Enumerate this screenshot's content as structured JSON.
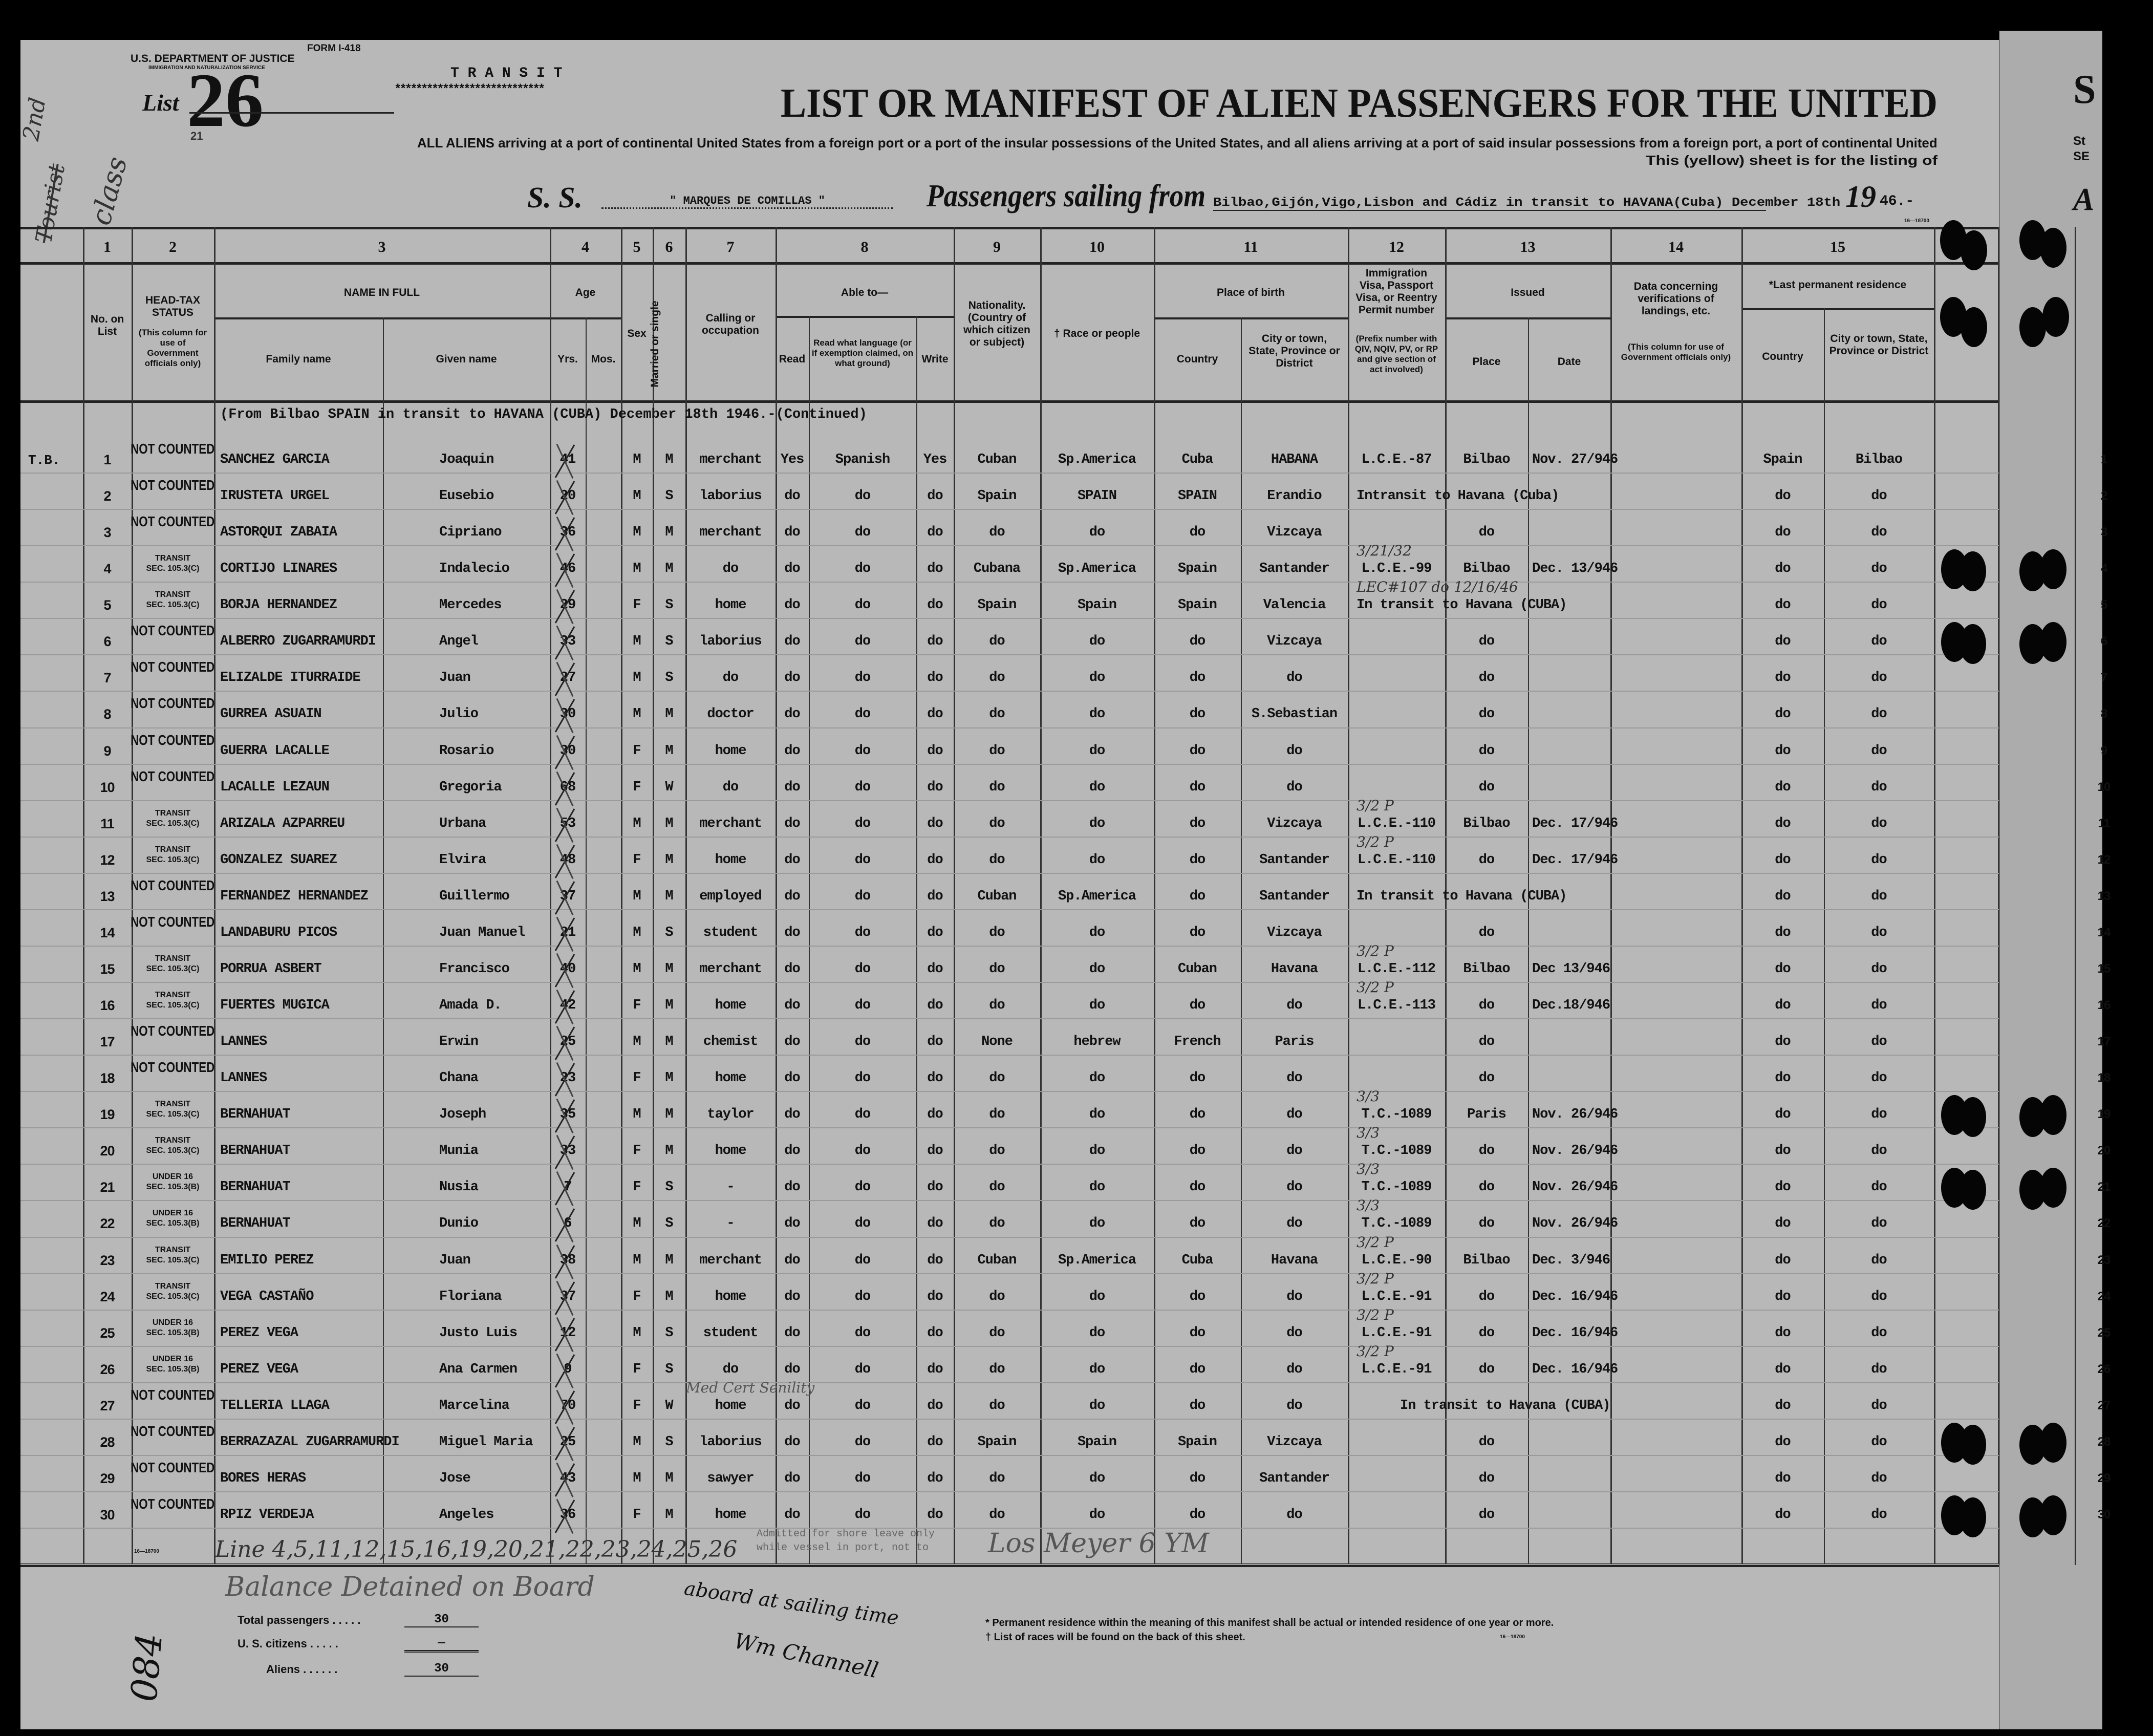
{
  "form": {
    "form_number": "FORM I-418",
    "department": "U.S. DEPARTMENT OF JUSTICE",
    "service": "IMMIGRATION AND NATURALIZATION SERVICE",
    "list_label": "List",
    "list_number": "26",
    "list_number_overwritten": "21",
    "transit": "T R A N S I T",
    "transit_underline": "****************************",
    "form_code": "16—18700"
  },
  "title": "LIST OR MANIFEST OF ALIEN PASSENGERS FOR THE UNITED",
  "subtitle_line1": "ALL ALIENS arriving at a port of continental United States from a foreign port or a port of the insular possessions of the United States, and all aliens arriving at a port of said insular possessions from a foreign port, a port of continental United",
  "subtitle_line2": "This (yellow) sheet is for the listing of",
  "ship": {
    "prefix": "S. S.",
    "name": "\" MARQUES DE COMILLAS \"",
    "sailing_label": "Passengers sailing from",
    "sailing_from": "Bilbao,Gijón,Vigo,Lisbon and Cádiz in transit to HAVANA(Cuba) December 18th",
    "year_prefix": "19",
    "year_suffix": "46.-"
  },
  "next_sheet": {
    "letter_top": "S",
    "letter_mid1": "St",
    "letter_mid2": "SE",
    "letter_bottom": "A"
  },
  "columns": {
    "numbers": [
      "1",
      "2",
      "3",
      "4",
      "5",
      "6",
      "7",
      "8",
      "9",
      "10",
      "11",
      "12",
      "13",
      "14",
      "15"
    ],
    "no_on_list": "No. on List",
    "head_tax": "HEAD-TAX STATUS",
    "head_tax_note": "(This column for use of Government officials only)",
    "name_in_full": "NAME IN FULL",
    "family_name": "Family name",
    "given_name": "Given name",
    "age": "Age",
    "yrs": "Yrs.",
    "mos": "Mos.",
    "sex": "Sex",
    "married": "Married or single",
    "calling": "Calling or occupation",
    "able_to": "Able to—",
    "read": "Read",
    "read_language": "Read what language (or if exemption claimed, on what ground)",
    "write": "Write",
    "nationality": "Nationality. (Country of which citizen or subject)",
    "race": "† Race or people",
    "place_of_birth": "Place of birth",
    "birth_country": "Country",
    "birth_city": "City or town, State, Province or District",
    "visa": "Immigration Visa, Passport Visa, or Reentry Permit number",
    "visa_note": "(Prefix number with QIV, NQIV, PV, or RP and give section of act involved)",
    "issued": "Issued",
    "issued_place": "Place",
    "issued_date": "Date",
    "verifications": "Data concerning verifications of landings, etc.",
    "verifications_note": "(This column for use of Government officials only)",
    "last_residence": "*Last permanent residence",
    "res_country": "Country",
    "res_city": "City or town, State, Province or District"
  },
  "section_note": "(From Bilbao SPAIN in transit to HAVANA (CUBA) December 18th 1946.-(Continued)",
  "margin_note": "T.B.",
  "rows": [
    {
      "n": "1",
      "s1": "NOT COUNTED",
      "fam": "SANCHEZ GARCIA",
      "giv": "Joaquin",
      "age": "41",
      "sex": "M",
      "ms": "M",
      "occ": "merchant",
      "rd": "Yes",
      "lang": "Spanish",
      "wr": "Yes",
      "nat": "Cuban",
      "race": "Sp.America",
      "bc": "Cuba",
      "bcity": "HABANA",
      "visa": "L.C.E.-87",
      "place": "Bilbao",
      "date": "Nov. 27/946",
      "rc": "Spain",
      "rcity": "Bilbao"
    },
    {
      "n": "2",
      "s1": "NOT COUNTED",
      "fam": "IRUSTETA URGEL",
      "giv": "Eusebio",
      "age": "20",
      "sex": "M",
      "ms": "S",
      "occ": "laborius",
      "rd": "do",
      "lang": "do",
      "wr": "do",
      "nat": "Spain",
      "race": "SPAIN",
      "bc": "SPAIN",
      "bcity": "Erandio",
      "note": "Intransit to Havana (Cuba)",
      "rc": "do",
      "rcity": "do"
    },
    {
      "n": "3",
      "s1": "NOT COUNTED",
      "fam": "ASTORQUI ZABAIA",
      "giv": "Cipriano",
      "age": "36",
      "sex": "M",
      "ms": "M",
      "occ": "merchant",
      "rd": "do",
      "lang": "do",
      "wr": "do",
      "nat": "do",
      "race": "do",
      "bc": "do",
      "bcity": "Vizcaya",
      "place": "do",
      "rc": "do",
      "rcity": "do"
    },
    {
      "n": "4",
      "s1": "TRANSIT",
      "s2": "SEC. 105.3(C)",
      "fam": "CORTIJO LINARES",
      "giv": "Indalecio",
      "age": "46",
      "sex": "M",
      "ms": "M",
      "occ": "do",
      "rd": "do",
      "lang": "do",
      "wr": "do",
      "nat": "Cubana",
      "race": "Sp.America",
      "bc": "Spain",
      "bcity": "Santander",
      "visa": "L.C.E.-99",
      "place": "Bilbao",
      "date": "Dec. 13/946",
      "rc": "do",
      "rcity": "do",
      "hv": "3/21/32"
    },
    {
      "n": "5",
      "s1": "TRANSIT",
      "s2": "SEC. 105.3(C)",
      "fam": "BORJA HERNANDEZ",
      "giv": "Mercedes",
      "age": "29",
      "sex": "F",
      "ms": "S",
      "occ": "home",
      "rd": "do",
      "lang": "do",
      "wr": "do",
      "nat": "Spain",
      "race": "Spain",
      "bc": "Spain",
      "bcity": "Valencia",
      "note": "In transit to Havana (CUBA)",
      "rc": "do",
      "rcity": "do",
      "hv": "LEC#107   do   12/16/46"
    },
    {
      "n": "6",
      "s1": "NOT COUNTED",
      "fam": "ALBERRO ZUGARRAMURDI",
      "giv": "Angel",
      "age": "33",
      "sex": "M",
      "ms": "S",
      "occ": "laborius",
      "rd": "do",
      "lang": "do",
      "wr": "do",
      "nat": "do",
      "race": "do",
      "bc": "do",
      "bcity": "Vizcaya",
      "place": "do",
      "rc": "do",
      "rcity": "do"
    },
    {
      "n": "7",
      "s1": "NOT COUNTED",
      "fam": "ELIZALDE ITURRAIDE",
      "giv": "Juan",
      "age": "27",
      "sex": "M",
      "ms": "S",
      "occ": "do",
      "rd": "do",
      "lang": "do",
      "wr": "do",
      "nat": "do",
      "race": "do",
      "bc": "do",
      "bcity": "do",
      "place": "do",
      "rc": "do",
      "rcity": "do"
    },
    {
      "n": "8",
      "s1": "NOT COUNTED",
      "fam": "GURREA ASUAIN",
      "giv": "Julio",
      "age": "30",
      "sex": "M",
      "ms": "M",
      "occ": "doctor",
      "rd": "do",
      "lang": "do",
      "wr": "do",
      "nat": "do",
      "race": "do",
      "bc": "do",
      "bcity": "S.Sebastian",
      "place": "do",
      "rc": "do",
      "rcity": "do"
    },
    {
      "n": "9",
      "s1": "NOT COUNTED",
      "fam": "GUERRA LACALLE",
      "giv": "Rosario",
      "age": "30",
      "sex": "F",
      "ms": "M",
      "occ": "home",
      "rd": "do",
      "lang": "do",
      "wr": "do",
      "nat": "do",
      "race": "do",
      "bc": "do",
      "bcity": "do",
      "place": "do",
      "rc": "do",
      "rcity": "do"
    },
    {
      "n": "10",
      "s1": "NOT COUNTED",
      "fam": "LACALLE LEZAUN",
      "giv": "Gregoria",
      "age": "68",
      "sex": "F",
      "ms": "W",
      "occ": "do",
      "rd": "do",
      "lang": "do",
      "wr": "do",
      "nat": "do",
      "race": "do",
      "bc": "do",
      "bcity": "do",
      "place": "do",
      "rc": "do",
      "rcity": "do"
    },
    {
      "n": "11",
      "s1": "TRANSIT",
      "s2": "SEC. 105.3(C)",
      "fam": "ARIZALA AZPARREU",
      "giv": "Urbana",
      "age": "53",
      "sex": "M",
      "ms": "M",
      "occ": "merchant",
      "rd": "do",
      "lang": "do",
      "wr": "do",
      "nat": "do",
      "race": "do",
      "bc": "do",
      "bcity": "Vizcaya",
      "visa": "L.C.E.-110",
      "place": "Bilbao",
      "date": "Dec. 17/946",
      "rc": "do",
      "rcity": "do",
      "hv": "3/2 P"
    },
    {
      "n": "12",
      "s1": "TRANSIT",
      "s2": "SEC. 105.3(C)",
      "fam": "GONZALEZ SUAREZ",
      "giv": "Elvira",
      "age": "48",
      "sex": "F",
      "ms": "M",
      "occ": "home",
      "rd": "do",
      "lang": "do",
      "wr": "do",
      "nat": "do",
      "race": "do",
      "bc": "do",
      "bcity": "Santander",
      "visa": "L.C.E.-110",
      "place": "do",
      "date": "Dec. 17/946",
      "rc": "do",
      "rcity": "do",
      "hv": "3/2 P"
    },
    {
      "n": "13",
      "s1": "NOT COUNTED",
      "fam": "FERNANDEZ HERNANDEZ",
      "giv": "Guillermo",
      "age": "37",
      "sex": "M",
      "ms": "M",
      "occ": "employed",
      "rd": "do",
      "lang": "do",
      "wr": "do",
      "nat": "Cuban",
      "race": "Sp.America",
      "bc": "do",
      "bcity": "Santander",
      "note": "In transit to Havana (CUBA)",
      "rc": "do",
      "rcity": "do"
    },
    {
      "n": "14",
      "s1": "NOT COUNTED",
      "fam": "LANDABURU PICOS",
      "giv": "Juan Manuel",
      "age": "21",
      "sex": "M",
      "ms": "S",
      "occ": "student",
      "rd": "do",
      "lang": "do",
      "wr": "do",
      "nat": "do",
      "race": "do",
      "bc": "do",
      "bcity": "Vizcaya",
      "place": "do",
      "rc": "do",
      "rcity": "do"
    },
    {
      "n": "15",
      "s1": "TRANSIT",
      "s2": "SEC. 105.3(C)",
      "fam": "PORRUA ASBERT",
      "giv": "Francisco",
      "age": "40",
      "sex": "M",
      "ms": "M",
      "occ": "merchant",
      "rd": "do",
      "lang": "do",
      "wr": "do",
      "nat": "do",
      "race": "do",
      "bc": "Cuban",
      "bcity": "Havana",
      "visa": "L.C.E.-112",
      "place": "Bilbao",
      "date": "Dec 13/946",
      "rc": "do",
      "rcity": "do",
      "hv": "3/2 P"
    },
    {
      "n": "16",
      "s1": "TRANSIT",
      "s2": "SEC. 105.3(C)",
      "fam": "FUERTES MUGICA",
      "giv": "Amada D.",
      "age": "42",
      "sex": "F",
      "ms": "M",
      "occ": "home",
      "rd": "do",
      "lang": "do",
      "wr": "do",
      "nat": "do",
      "race": "do",
      "bc": "do",
      "bcity": "do",
      "visa": "L.C.E.-113",
      "place": "do",
      "date": "Dec.18/946",
      "rc": "do",
      "rcity": "do",
      "hv": "3/2 P"
    },
    {
      "n": "17",
      "s1": "NOT COUNTED",
      "fam": "LANNES",
      "giv": "Erwin",
      "age": "25",
      "sex": "M",
      "ms": "M",
      "occ": "chemist",
      "rd": "do",
      "lang": "do",
      "wr": "do",
      "nat": "None",
      "race": "hebrew",
      "bc": "French",
      "bcity": "Paris",
      "place": "do",
      "rc": "do",
      "rcity": "do"
    },
    {
      "n": "18",
      "s1": "NOT COUNTED",
      "fam": "LANNES",
      "giv": "Chana",
      "age": "23",
      "sex": "F",
      "ms": "M",
      "occ": "home",
      "rd": "do",
      "lang": "do",
      "wr": "do",
      "nat": "do",
      "race": "do",
      "bc": "do",
      "bcity": "do",
      "place": "do",
      "rc": "do",
      "rcity": "do"
    },
    {
      "n": "19",
      "s1": "TRANSIT",
      "s2": "SEC. 105.3(C)",
      "fam": "BERNAHUAT",
      "giv": "Joseph",
      "age": "35",
      "sex": "M",
      "ms": "M",
      "occ": "taylor",
      "rd": "do",
      "lang": "do",
      "wr": "do",
      "nat": "do",
      "race": "do",
      "bc": "do",
      "bcity": "do",
      "visa": "T.C.-1089",
      "place": "Paris",
      "date": "Nov. 26/946",
      "rc": "do",
      "rcity": "do",
      "hv": "3/3"
    },
    {
      "n": "20",
      "s1": "TRANSIT",
      "s2": "SEC. 105.3(C)",
      "fam": "BERNAHUAT",
      "giv": "Munia",
      "age": "33",
      "sex": "F",
      "ms": "M",
      "occ": "home",
      "rd": "do",
      "lang": "do",
      "wr": "do",
      "nat": "do",
      "race": "do",
      "bc": "do",
      "bcity": "do",
      "visa": "T.C.-1089",
      "place": "do",
      "date": "Nov. 26/946",
      "rc": "do",
      "rcity": "do",
      "hv": "3/3"
    },
    {
      "n": "21",
      "s1": "UNDER 16",
      "s2": "SEC. 105.3(B)",
      "fam": "BERNAHUAT",
      "giv": "Nusia",
      "age": "7",
      "sex": "F",
      "ms": "S",
      "occ": "-",
      "rd": "do",
      "lang": "do",
      "wr": "do",
      "nat": "do",
      "race": "do",
      "bc": "do",
      "bcity": "do",
      "visa": "T.C.-1089",
      "place": "do",
      "date": "Nov. 26/946",
      "rc": "do",
      "rcity": "do",
      "hv": "3/3"
    },
    {
      "n": "22",
      "s1": "UNDER 16",
      "s2": "SEC. 105.3(B)",
      "fam": "BERNAHUAT",
      "giv": "Dunio",
      "age": "6",
      "sex": "M",
      "ms": "S",
      "occ": "-",
      "rd": "do",
      "lang": "do",
      "wr": "do",
      "nat": "do",
      "race": "do",
      "bc": "do",
      "bcity": "do",
      "visa": "T.C.-1089",
      "place": "do",
      "date": "Nov. 26/946",
      "rc": "do",
      "rcity": "do",
      "hv": "3/3"
    },
    {
      "n": "23",
      "s1": "TRANSIT",
      "s2": "SEC. 105.3(C)",
      "fam": "EMILIO PEREZ",
      "giv": "Juan",
      "age": "38",
      "sex": "M",
      "ms": "M",
      "occ": "merchant",
      "rd": "do",
      "lang": "do",
      "wr": "do",
      "nat": "Cuban",
      "race": "Sp.America",
      "bc": "Cuba",
      "bcity": "Havana",
      "visa": "L.C.E.-90",
      "place": "Bilbao",
      "date": "Dec. 3/946",
      "rc": "do",
      "rcity": "do",
      "hv": "3/2 P"
    },
    {
      "n": "24",
      "s1": "TRANSIT",
      "s2": "SEC. 105.3(C)",
      "fam": "VEGA CASTAÑO",
      "giv": "Floriana",
      "age": "37",
      "sex": "F",
      "ms": "M",
      "occ": "home",
      "rd": "do",
      "lang": "do",
      "wr": "do",
      "nat": "do",
      "race": "do",
      "bc": "do",
      "bcity": "do",
      "visa": "L.C.E.-91",
      "place": "do",
      "date": "Dec. 16/946",
      "rc": "do",
      "rcity": "do",
      "hv": "3/2 P"
    },
    {
      "n": "25",
      "s1": "UNDER 16",
      "s2": "SEC. 105.3(B)",
      "fam": "PEREZ VEGA",
      "giv": "Justo Luis",
      "age": "12",
      "sex": "M",
      "ms": "S",
      "occ": "student",
      "rd": "do",
      "lang": "do",
      "wr": "do",
      "nat": "do",
      "race": "do",
      "bc": "do",
      "bcity": "do",
      "visa": "L.C.E.-91",
      "place": "do",
      "date": "Dec. 16/946",
      "rc": "do",
      "rcity": "do",
      "hv": "3/2 P"
    },
    {
      "n": "26",
      "s1": "UNDER 16",
      "s2": "SEC. 105.3(B)",
      "fam": "PEREZ VEGA",
      "giv": "Ana Carmen",
      "age": "9",
      "sex": "F",
      "ms": "S",
      "occ": "do",
      "rd": "do",
      "lang": "do",
      "wr": "do",
      "nat": "do",
      "race": "do",
      "bc": "do",
      "bcity": "do",
      "visa": "L.C.E.-91",
      "place": "do",
      "date": "Dec. 16/946",
      "rc": "do",
      "rcity": "do",
      "hv": "3/2 P"
    },
    {
      "n": "27",
      "s1": "NOT COUNTED",
      "fam": "TELLERIA LLAGA",
      "giv": "Marcelina",
      "age": "70",
      "sex": "F",
      "ms": "W",
      "occ": "home",
      "rd": "do",
      "lang": "do",
      "wr": "do",
      "nat": "do",
      "race": "do",
      "bc": "do",
      "bcity": "do",
      "note": "In transit to Havana (CUBA)",
      "rc": "do",
      "rcity": "do",
      "hv2": "Med Cert  Senility"
    },
    {
      "n": "28",
      "s1": "NOT COUNTED",
      "fam": "BERRAZAZAL ZUGARRAMURDI",
      "giv": "Miguel Maria",
      "age": "25",
      "sex": "M",
      "ms": "S",
      "occ": "laborius",
      "rd": "do",
      "lang": "do",
      "wr": "do",
      "nat": "Spain",
      "race": "Spain",
      "bc": "Spain",
      "bcity": "Vizcaya",
      "place": "do",
      "rc": "do",
      "rcity": "do"
    },
    {
      "n": "29",
      "s1": "NOT COUNTED",
      "fam": "BORES HERAS",
      "giv": "Jose",
      "age": "43",
      "sex": "M",
      "ms": "M",
      "occ": "sawyer",
      "rd": "do",
      "lang": "do",
      "wr": "do",
      "nat": "do",
      "race": "do",
      "bc": "do",
      "bcity": "Santander",
      "place": "do",
      "rc": "do",
      "rcity": "do"
    },
    {
      "n": "30",
      "s1": "NOT COUNTED",
      "fam": "RPIZ VERDEJA",
      "giv": "Angeles",
      "age": "36",
      "sex": "F",
      "ms": "M",
      "occ": "home",
      "rd": "do",
      "lang": "do",
      "wr": "do",
      "nat": "do",
      "race": "do",
      "bc": "do",
      "bcity": "do",
      "place": "do",
      "rc": "do",
      "rcity": "do"
    }
  ],
  "stamp_shore_leave": {
    "line1": "Admitted for shore leave only",
    "line2": "while vessel in port, not to"
  },
  "footer": {
    "total_label": "Total passengers . . . . .",
    "total_value": "30",
    "citizens_label": "U. S. citizens . . . . .",
    "citizens_value": "—",
    "aliens_label": "Aliens . . . . . .",
    "aliens_value": "30",
    "footnote1": "* Permanent residence within the meaning of this manifest shall be actual or intended residence of one year or more.",
    "footnote2": "† List of races will be found on the back of this sheet.",
    "form_code": "16—18700"
  },
  "handwritten": {
    "class_2nd": "2nd",
    "class_struck": "Tourist",
    "class_word": "class",
    "lines_note": "Line 4,5,11,12,15,16,19,20,21,22,23,24,25,26",
    "balance_note": "Balance Detained on Board",
    "aboard_note": "aboard at sailing time",
    "signature": "Wm Channell",
    "inspector": "Los Meyer  6 YM",
    "sheet_number": "084"
  }
}
